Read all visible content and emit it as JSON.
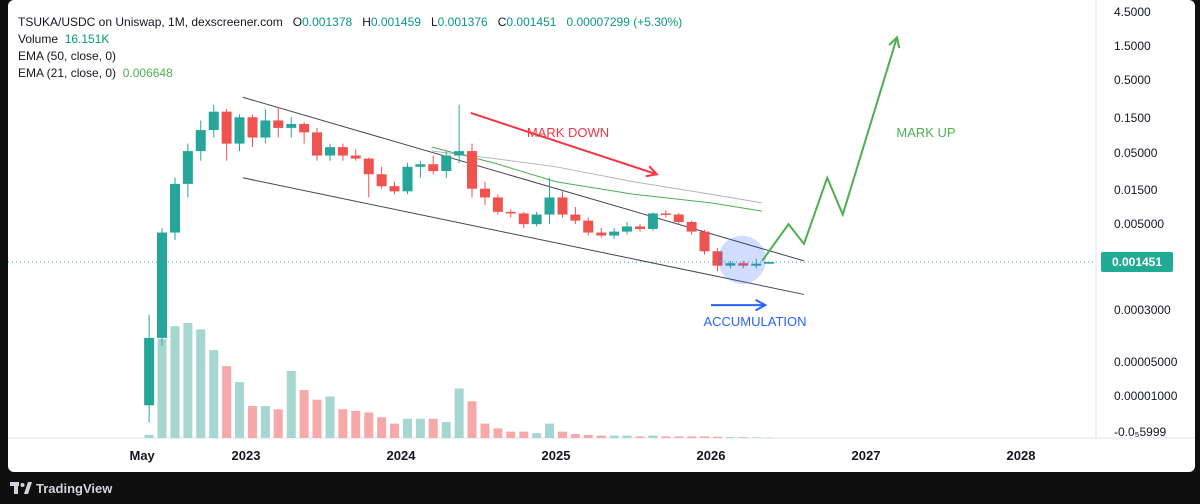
{
  "header": {
    "symbol": "TSUKA/USDC on Uniswap, 1M, dexscreener.com",
    "open_label": "O",
    "open": "0.001378",
    "high_label": "H",
    "high": "0.001459",
    "low_label": "L",
    "low": "0.001376",
    "close_label": "C",
    "close": "0.001451",
    "change": "0.00007299 (+5.30%)",
    "volume_label": "Volume",
    "volume": "16.151K",
    "ema50_label": "EMA (50, close, 0)",
    "ema21_label": "EMA (21, close, 0)",
    "ema21_value": "0.006648"
  },
  "annotations": {
    "mark_down": "MARK DOWN",
    "mark_up": "MARK UP",
    "accumulation": "ACCUMULATION"
  },
  "colors": {
    "up": "#26a69a",
    "down": "#ef5350",
    "up_volume": "#a5d6cf",
    "down_volume": "#f7a9a9",
    "ema21": "#4caf50",
    "mark_down": "#f23645",
    "mark_up": "#4caf50",
    "accumulation": "#2962ff",
    "price_badge": "#22ab94"
  },
  "footer": {
    "brand": "TradingView"
  },
  "chart_data": {
    "type": "candlestick",
    "y_scale": "log",
    "y_ticks": [
      "4.5000",
      "1.5000",
      "0.5000",
      "0.1500",
      "0.05000",
      "0.01500",
      "0.005000",
      "0.0003000",
      "0.00005000",
      "0.00001000",
      "-0.0₅5999"
    ],
    "current_price_label": "0.001451",
    "x_ticks": [
      {
        "label": "May",
        "t": 2022.33
      },
      {
        "label": "2023",
        "t": 2023.0
      },
      {
        "label": "2024",
        "t": 2024.0
      },
      {
        "label": "2025",
        "t": 2025.0
      },
      {
        "label": "2026",
        "t": 2026.0
      },
      {
        "label": "2027",
        "t": 2027.0
      },
      {
        "label": "2028",
        "t": 2028.0
      }
    ],
    "candles": [
      {
        "t": 2022.375,
        "o": 2e-05,
        "h": 0.0003,
        "l": 1.2e-05,
        "c": 0.00015
      },
      {
        "t": 2022.458,
        "o": 0.00015,
        "h": 0.004,
        "l": 0.00012,
        "c": 0.0035
      },
      {
        "t": 2022.542,
        "o": 0.0035,
        "h": 0.018,
        "l": 0.0028,
        "c": 0.015
      },
      {
        "t": 2022.625,
        "o": 0.015,
        "h": 0.05,
        "l": 0.01,
        "c": 0.04
      },
      {
        "t": 2022.708,
        "o": 0.04,
        "h": 0.1,
        "l": 0.03,
        "c": 0.075
      },
      {
        "t": 2022.792,
        "o": 0.075,
        "h": 0.16,
        "l": 0.06,
        "c": 0.13
      },
      {
        "t": 2022.875,
        "o": 0.13,
        "h": 0.14,
        "l": 0.03,
        "c": 0.05
      },
      {
        "t": 2022.958,
        "o": 0.05,
        "h": 0.12,
        "l": 0.04,
        "c": 0.11
      },
      {
        "t": 2023.042,
        "o": 0.11,
        "h": 0.12,
        "l": 0.045,
        "c": 0.06
      },
      {
        "t": 2023.125,
        "o": 0.06,
        "h": 0.14,
        "l": 0.05,
        "c": 0.1
      },
      {
        "t": 2023.208,
        "o": 0.1,
        "h": 0.15,
        "l": 0.06,
        "c": 0.08
      },
      {
        "t": 2023.292,
        "o": 0.08,
        "h": 0.11,
        "l": 0.06,
        "c": 0.09
      },
      {
        "t": 2023.375,
        "o": 0.09,
        "h": 0.095,
        "l": 0.05,
        "c": 0.07
      },
      {
        "t": 2023.458,
        "o": 0.07,
        "h": 0.08,
        "l": 0.03,
        "c": 0.035
      },
      {
        "t": 2023.542,
        "o": 0.035,
        "h": 0.05,
        "l": 0.03,
        "c": 0.045
      },
      {
        "t": 2023.625,
        "o": 0.045,
        "h": 0.05,
        "l": 0.03,
        "c": 0.035
      },
      {
        "t": 2023.708,
        "o": 0.035,
        "h": 0.042,
        "l": 0.03,
        "c": 0.032
      },
      {
        "t": 2023.792,
        "o": 0.032,
        "h": 0.033,
        "l": 0.01,
        "c": 0.02
      },
      {
        "t": 2023.875,
        "o": 0.02,
        "h": 0.025,
        "l": 0.013,
        "c": 0.014
      },
      {
        "t": 2023.958,
        "o": 0.014,
        "h": 0.016,
        "l": 0.011,
        "c": 0.012
      },
      {
        "t": 2024.042,
        "o": 0.012,
        "h": 0.028,
        "l": 0.011,
        "c": 0.025
      },
      {
        "t": 2024.125,
        "o": 0.025,
        "h": 0.03,
        "l": 0.018,
        "c": 0.027
      },
      {
        "t": 2024.208,
        "o": 0.027,
        "h": 0.035,
        "l": 0.02,
        "c": 0.022
      },
      {
        "t": 2024.292,
        "o": 0.022,
        "h": 0.04,
        "l": 0.018,
        "c": 0.035
      },
      {
        "t": 2024.375,
        "o": 0.035,
        "h": 0.16,
        "l": 0.028,
        "c": 0.04
      },
      {
        "t": 2024.458,
        "o": 0.04,
        "h": 0.05,
        "l": 0.01,
        "c": 0.013
      },
      {
        "t": 2024.542,
        "o": 0.013,
        "h": 0.016,
        "l": 0.008,
        "c": 0.01
      },
      {
        "t": 2024.625,
        "o": 0.01,
        "h": 0.011,
        "l": 0.006,
        "c": 0.0065
      },
      {
        "t": 2024.708,
        "o": 0.0065,
        "h": 0.007,
        "l": 0.0055,
        "c": 0.0062
      },
      {
        "t": 2024.792,
        "o": 0.0062,
        "h": 0.0065,
        "l": 0.004,
        "c": 0.0045
      },
      {
        "t": 2024.875,
        "o": 0.0045,
        "h": 0.0065,
        "l": 0.0042,
        "c": 0.006
      },
      {
        "t": 2024.958,
        "o": 0.006,
        "h": 0.018,
        "l": 0.0045,
        "c": 0.01
      },
      {
        "t": 2025.042,
        "o": 0.01,
        "h": 0.012,
        "l": 0.0055,
        "c": 0.006
      },
      {
        "t": 2025.125,
        "o": 0.006,
        "h": 0.0075,
        "l": 0.0045,
        "c": 0.005
      },
      {
        "t": 2025.208,
        "o": 0.005,
        "h": 0.0055,
        "l": 0.0032,
        "c": 0.0035
      },
      {
        "t": 2025.292,
        "o": 0.0035,
        "h": 0.004,
        "l": 0.003,
        "c": 0.0032
      },
      {
        "t": 2025.375,
        "o": 0.0032,
        "h": 0.004,
        "l": 0.0029,
        "c": 0.0036
      },
      {
        "t": 2025.458,
        "o": 0.0036,
        "h": 0.0048,
        "l": 0.0033,
        "c": 0.0042
      },
      {
        "t": 2025.542,
        "o": 0.0042,
        "h": 0.0045,
        "l": 0.0036,
        "c": 0.0039
      },
      {
        "t": 2025.625,
        "o": 0.0039,
        "h": 0.0064,
        "l": 0.0037,
        "c": 0.0062
      },
      {
        "t": 2025.708,
        "o": 0.0062,
        "h": 0.0068,
        "l": 0.0055,
        "c": 0.006
      },
      {
        "t": 2025.792,
        "o": 0.006,
        "h": 0.0063,
        "l": 0.0045,
        "c": 0.0048
      },
      {
        "t": 2025.875,
        "o": 0.0048,
        "h": 0.005,
        "l": 0.0033,
        "c": 0.0036
      },
      {
        "t": 2025.958,
        "o": 0.0036,
        "h": 0.0038,
        "l": 0.0018,
        "c": 0.002
      },
      {
        "t": 2026.042,
        "o": 0.002,
        "h": 0.0022,
        "l": 0.0011,
        "c": 0.0013
      },
      {
        "t": 2026.125,
        "o": 0.0013,
        "h": 0.0015,
        "l": 0.0012,
        "c": 0.0014
      },
      {
        "t": 2026.208,
        "o": 0.0014,
        "h": 0.0015,
        "l": 0.0012,
        "c": 0.0013
      },
      {
        "t": 2026.292,
        "o": 0.0013,
        "h": 0.0016,
        "l": 0.0012,
        "c": 0.00138
      },
      {
        "t": 2026.375,
        "o": 0.001378,
        "h": 0.001459,
        "l": 0.001376,
        "c": 0.001451
      }
    ],
    "volume": [
      0.02,
      0.62,
      0.7,
      0.72,
      0.68,
      0.55,
      0.45,
      0.35,
      0.2,
      0.2,
      0.18,
      0.42,
      0.3,
      0.24,
      0.26,
      0.18,
      0.17,
      0.16,
      0.13,
      0.09,
      0.12,
      0.12,
      0.12,
      0.1,
      0.31,
      0.23,
      0.09,
      0.06,
      0.04,
      0.04,
      0.03,
      0.09,
      0.04,
      0.025,
      0.02,
      0.015,
      0.015,
      0.015,
      0.01,
      0.015,
      0.01,
      0.01,
      0.01,
      0.01,
      0.008,
      0.006,
      0.005,
      0.004,
      0.003
    ],
    "ema50": [
      [
        2024.2,
        0.04
      ],
      [
        2024.6,
        0.032
      ],
      [
        2025.0,
        0.025
      ],
      [
        2025.5,
        0.016
      ],
      [
        2026.0,
        0.011
      ],
      [
        2026.33,
        0.0085
      ]
    ],
    "ema21": [
      [
        2024.2,
        0.045
      ],
      [
        2024.6,
        0.028
      ],
      [
        2025.0,
        0.016
      ],
      [
        2025.5,
        0.011
      ],
      [
        2026.0,
        0.0085
      ],
      [
        2026.33,
        0.006648
      ]
    ],
    "channel_upper": [
      [
        2022.98,
        0.2
      ],
      [
        2026.6,
        0.0015
      ]
    ],
    "channel_lower": [
      [
        2022.98,
        0.018
      ],
      [
        2026.6,
        0.00055
      ]
    ],
    "mark_down_arrow": [
      [
        2024.45,
        0.125
      ],
      [
        2025.65,
        0.02
      ]
    ],
    "accumulation_arrow": [
      [
        2026.0,
        0.0004
      ],
      [
        2026.35,
        0.0004
      ]
    ],
    "mark_up_path": [
      [
        2026.33,
        0.0015
      ],
      [
        2026.5,
        0.0045
      ],
      [
        2026.6,
        0.0025
      ],
      [
        2026.75,
        0.018
      ],
      [
        2026.85,
        0.006
      ],
      [
        2027.2,
        1.2
      ]
    ],
    "accumulation_zone": {
      "t": 2026.2,
      "price": 0.00155
    }
  }
}
